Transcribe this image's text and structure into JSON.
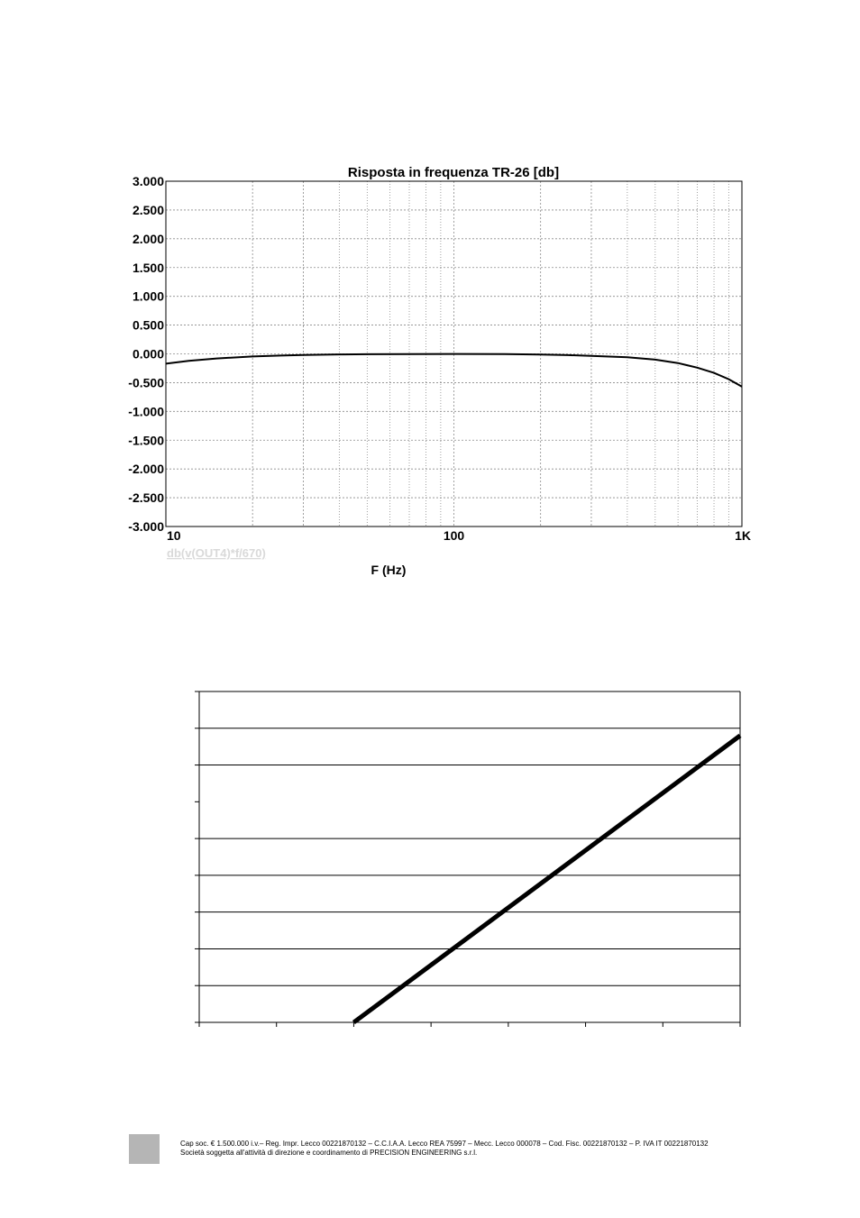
{
  "chart_data": [
    {
      "type": "line",
      "title": "Risposta in frequenza TR-26 [db]",
      "xlabel": "F (Hz)",
      "ylabel": "",
      "x_scale": "log",
      "xlim": [
        10,
        1000
      ],
      "ylim": [
        -3.0,
        3.0
      ],
      "x_ticks": [
        "10",
        "100",
        "1K"
      ],
      "y_ticks": [
        "3.000",
        "2.500",
        "2.000",
        "1.500",
        "1.000",
        "0.500",
        "0.000",
        "-0.500",
        "-1.000",
        "-1.500",
        "-2.000",
        "-2.500",
        "-3.000"
      ],
      "y_tick_values": [
        3.0,
        2.5,
        2.0,
        1.5,
        1.0,
        0.5,
        0.0,
        -0.5,
        -1.0,
        -1.5,
        -2.0,
        -2.5,
        -3.0
      ],
      "grid": true,
      "series": [
        {
          "name": "db(v(OUT4)*f/670)",
          "x": [
            10,
            12,
            15,
            20,
            25,
            30,
            40,
            50,
            70,
            100,
            150,
            200,
            250,
            300,
            400,
            500,
            600,
            700,
            800,
            900,
            1000
          ],
          "y": [
            -0.17,
            -0.12,
            -0.08,
            -0.045,
            -0.03,
            -0.02,
            -0.01,
            -0.006,
            -0.003,
            -0.002,
            -0.005,
            -0.012,
            -0.022,
            -0.035,
            -0.06,
            -0.1,
            -0.16,
            -0.24,
            -0.33,
            -0.44,
            -0.57
          ]
        }
      ]
    },
    {
      "type": "line",
      "title": "",
      "xlabel": "",
      "ylabel": "",
      "x_ticks_count": 7,
      "y_gridlines": 9,
      "series": [
        {
          "x": [
            2,
            7
          ],
          "y": [
            0,
            7.8
          ]
        }
      ],
      "xlim": [
        0,
        7
      ],
      "ylim": [
        0,
        9
      ]
    }
  ],
  "footer": {
    "line1": "Cap soc. € 1.500.000 i.v.– Reg. Impr. Lecco 00221870132 – C.C.I.A.A. Lecco REA 75997 – Mecc. Lecco 000078 – Cod. Fisc. 00221870132 – P. IVA  IT 00221870132",
    "line2": "Società soggetta all'attività di direzione e coordinamento di PRECISION ENGINEERING s.r.l."
  }
}
